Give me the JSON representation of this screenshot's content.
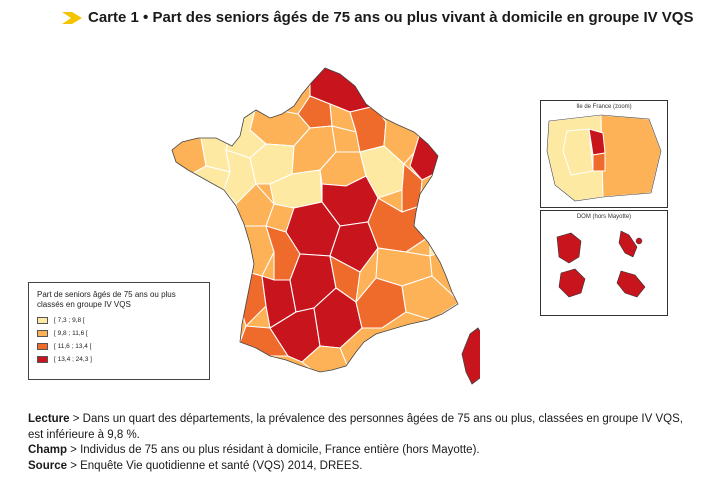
{
  "header": {
    "title": "Carte 1 • Part des seniors âgés de 75 ans ou plus vivant à domicile en groupe IV VQS"
  },
  "colors": {
    "accent": "#f5c400",
    "class1": "#fee9a2",
    "class2": "#fdb257",
    "class3": "#ef6b2c",
    "class4": "#c8141c"
  },
  "legend": {
    "title": "Part de seniors âgés de 75 ans ou plus classés en groupe IV VQS",
    "items": [
      {
        "label": "[ 7,3 ; 9,8 [",
        "color": "#fee9a2"
      },
      {
        "label": "[ 9,8 ; 11,6 [",
        "color": "#fdb257"
      },
      {
        "label": "[ 11,6 ; 13,4 [",
        "color": "#ef6b2c"
      },
      {
        "label": "[ 13,4 ; 24,3 ]",
        "color": "#c8141c"
      }
    ]
  },
  "insets": {
    "idf_title": "Ile de France (zoom)",
    "dom_title": "DOM (hors Mayotte)"
  },
  "notes": {
    "lecture_label": "Lecture",
    "lecture_text": " > Dans un quart des départements, la prévalence des personnes âgées de 75 ans ou plus, classées en groupe IV VQS, est inférieure à 9,8 %.",
    "champ_label": "Champ",
    "champ_text": " > Individus de 75 ans ou plus résidant à domicile, France entière (hors Mayotte).",
    "source_label": "Source",
    "source_text": " > Enquête Vie quotidienne et santé (VQS) 2014, DREES."
  }
}
